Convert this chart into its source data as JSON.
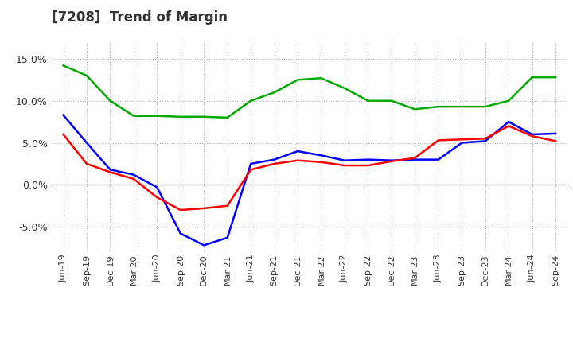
{
  "title": "[7208]  Trend of Margin",
  "x_labels": [
    "Jun-19",
    "Sep-19",
    "Dec-19",
    "Mar-20",
    "Jun-20",
    "Sep-20",
    "Dec-20",
    "Mar-21",
    "Jun-21",
    "Sep-21",
    "Dec-21",
    "Mar-22",
    "Jun-22",
    "Sep-22",
    "Dec-22",
    "Mar-23",
    "Jun-23",
    "Sep-23",
    "Dec-23",
    "Mar-24",
    "Jun-24",
    "Sep-24"
  ],
  "ordinary_income": [
    8.3,
    5.0,
    1.8,
    1.2,
    -0.3,
    -5.8,
    -7.2,
    -6.3,
    2.5,
    3.0,
    4.0,
    3.5,
    2.9,
    3.0,
    2.9,
    3.0,
    3.0,
    5.0,
    5.2,
    7.5,
    6.0,
    6.1
  ],
  "net_income": [
    6.0,
    2.5,
    1.5,
    0.7,
    -1.5,
    -3.0,
    -2.8,
    -2.5,
    1.8,
    2.5,
    2.9,
    2.7,
    2.3,
    2.3,
    2.8,
    3.2,
    5.3,
    5.4,
    5.5,
    7.0,
    5.8,
    5.2
  ],
  "operating_cashflow": [
    14.2,
    13.0,
    10.0,
    8.2,
    8.2,
    8.1,
    8.1,
    8.0,
    10.0,
    11.0,
    12.5,
    12.7,
    11.5,
    10.0,
    10.0,
    9.0,
    9.3,
    9.3,
    9.3,
    10.0,
    12.8,
    12.8
  ],
  "ordinary_income_color": "#0000ff",
  "net_income_color": "#ff0000",
  "operating_cashflow_color": "#00aa00",
  "ylim": [
    -8.0,
    17.0
  ],
  "yticks": [
    -5.0,
    0.0,
    5.0,
    10.0,
    15.0
  ],
  "background_color": "#ffffff",
  "plot_bg_color": "#ffffff",
  "grid_color": "#aaaaaa",
  "title_color": "#333333",
  "line_width": 1.8
}
